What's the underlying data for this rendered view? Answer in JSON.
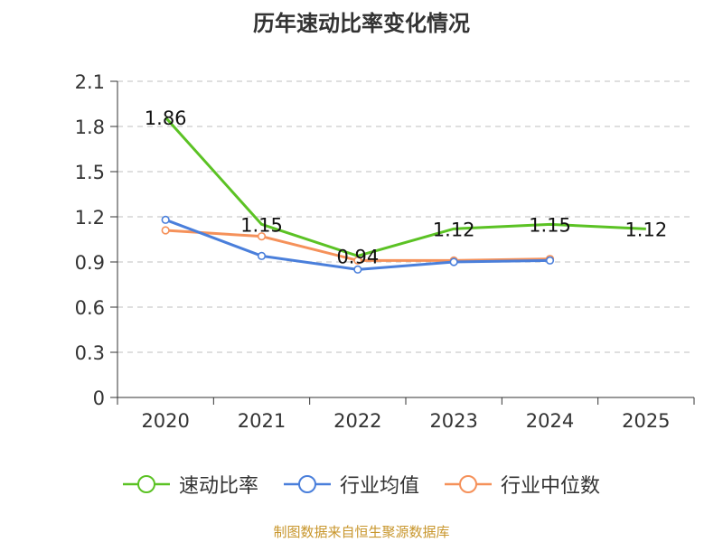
{
  "page": {
    "title": "历年速动比率变化情况",
    "source": "制图数据来自恒生聚源数据库"
  },
  "chart_data": {
    "type": "line",
    "title": "历年速动比率变化情况",
    "xlabel": "",
    "ylabel": "",
    "categories": [
      "2020",
      "2021",
      "2022",
      "2023",
      "2024",
      "2025"
    ],
    "ylim": [
      0,
      2.1
    ],
    "yticks": [
      "0",
      "0.3",
      "0.6",
      "0.9",
      "1.2",
      "1.5",
      "1.8",
      "2.1"
    ],
    "grid": true,
    "legend_position": "bottom",
    "series": [
      {
        "name": "速动比率",
        "color": "#5bc224",
        "values": [
          1.86,
          1.15,
          0.94,
          1.12,
          1.15,
          1.12
        ],
        "labels": [
          "1.86",
          "1.15",
          "0.94",
          "1.12",
          "1.15",
          "1.12"
        ],
        "markers": false
      },
      {
        "name": "行业均值",
        "color": "#4a7fdb",
        "values": [
          1.18,
          0.94,
          0.85,
          0.9,
          0.91,
          null
        ],
        "markers": true
      },
      {
        "name": "行业中位数",
        "color": "#f5915a",
        "values": [
          1.11,
          1.07,
          0.91,
          0.91,
          0.92,
          null
        ],
        "markers": true
      }
    ]
  }
}
